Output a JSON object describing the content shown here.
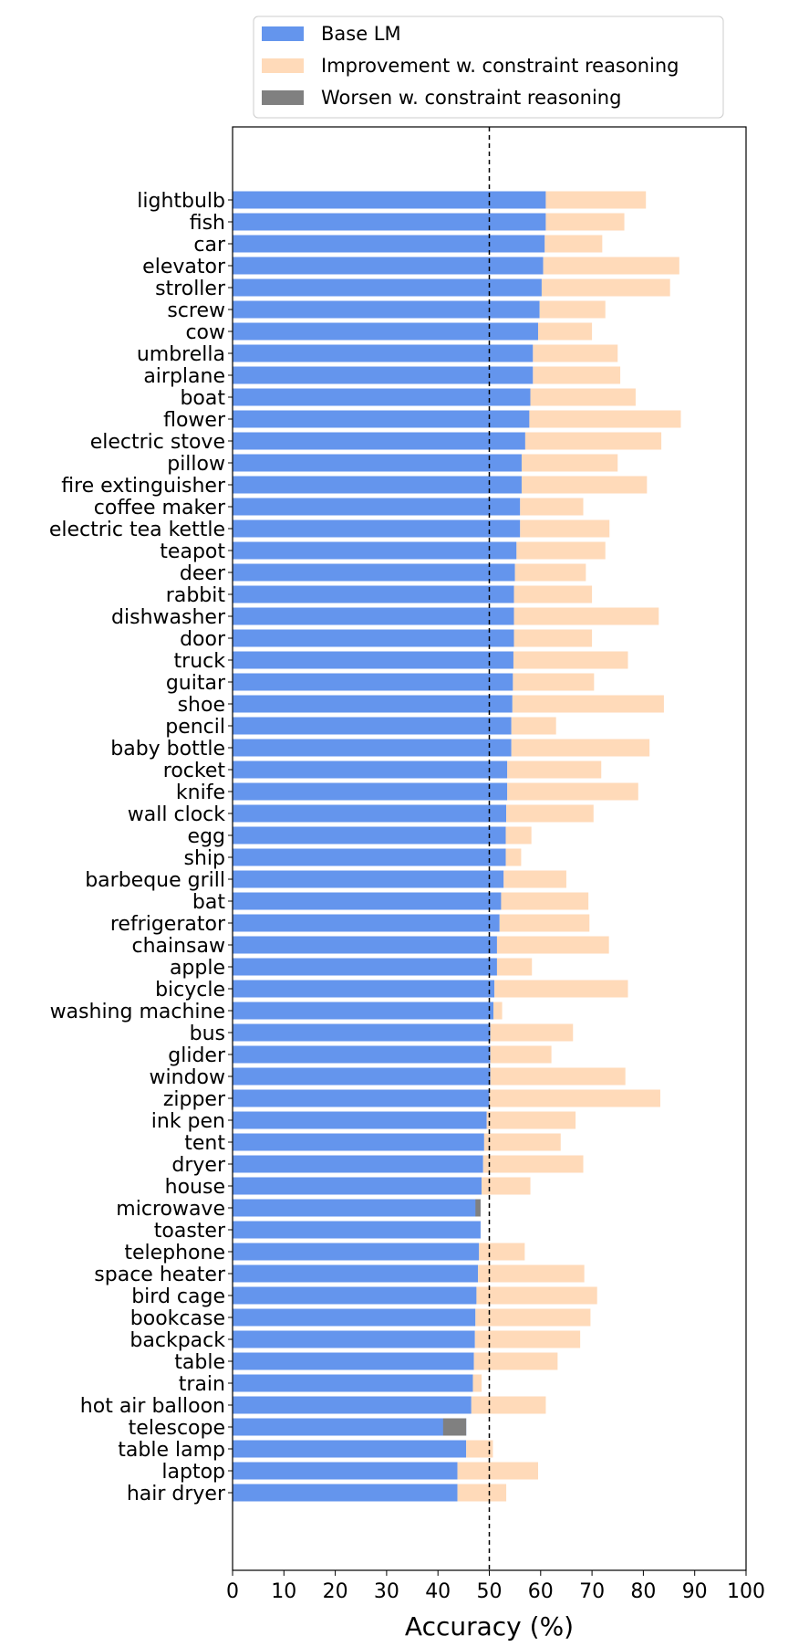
{
  "chart_data": {
    "type": "bar",
    "orientation": "horizontal",
    "stacked": true,
    "xlabel": "Accuracy (%)",
    "ylabel": "",
    "xlim": [
      0,
      100
    ],
    "xticks": [
      0,
      10,
      20,
      30,
      40,
      50,
      60,
      70,
      80,
      90,
      100
    ],
    "reference_line": {
      "x": 50,
      "style": "dashed"
    },
    "legend_position": "top-center",
    "colors": {
      "base": "#6495ED",
      "improvement": "#FFDAB9",
      "worsen": "#808080"
    },
    "legend": [
      {
        "key": "base",
        "label": "Base LM"
      },
      {
        "key": "improvement",
        "label": "Improvement w. constraint reasoning"
      },
      {
        "key": "worsen",
        "label": "Worsen w. constraint reasoning"
      }
    ],
    "categories": [
      "lightbulb",
      "fish",
      "car",
      "elevator",
      "stroller",
      "screw",
      "cow",
      "umbrella",
      "airplane",
      "boat",
      "flower",
      "electric stove",
      "pillow",
      "fire extinguisher",
      "coffee maker",
      "electric tea kettle",
      "teapot",
      "deer",
      "rabbit",
      "dishwasher",
      "door",
      "truck",
      "guitar",
      "shoe",
      "pencil",
      "baby bottle",
      "rocket",
      "knife",
      "wall clock",
      "egg",
      "ship",
      "barbeque grill",
      "bat",
      "refrigerator",
      "chainsaw",
      "apple",
      "bicycle",
      "washing machine",
      "bus",
      "glider",
      "window",
      "zipper",
      "ink pen",
      "tent",
      "dryer",
      "house",
      "microwave",
      "toaster",
      "telephone",
      "space heater",
      "bird cage",
      "bookcase",
      "backpack",
      "table",
      "train",
      "hot air balloon",
      "telescope",
      "table lamp",
      "laptop",
      "hair dryer"
    ],
    "series": [
      {
        "name": "Base LM",
        "key": "base",
        "values": [
          61,
          61,
          60.8,
          60.5,
          60.2,
          59.8,
          59.5,
          58.5,
          58.5,
          58,
          57.8,
          57,
          56.3,
          56.3,
          56,
          56,
          55.3,
          55,
          54.8,
          54.8,
          54.8,
          54.7,
          54.6,
          54.5,
          54.3,
          54.3,
          53.5,
          53.5,
          53.3,
          53.2,
          53.2,
          52.8,
          52.3,
          52,
          51.5,
          51.5,
          51,
          50.8,
          50.2,
          50.2,
          50.2,
          50,
          49.5,
          49,
          48.8,
          48.5,
          48.3,
          48.3,
          48,
          47.8,
          47.5,
          47.3,
          47.2,
          47,
          46.8,
          46.5,
          45.5,
          45.5,
          43.8,
          43.8
        ]
      },
      {
        "name": "Improvement w. constraint reasoning",
        "key": "improvement",
        "values": [
          19.5,
          15.3,
          11.2,
          26.5,
          25,
          12.8,
          10.5,
          16.5,
          17,
          20.5,
          29.5,
          26.5,
          18.7,
          24.4,
          12.3,
          17.4,
          17.3,
          13.8,
          15.2,
          28.2,
          15.2,
          22.3,
          15.8,
          29.5,
          8.7,
          26.9,
          18.3,
          25.5,
          17,
          5,
          3,
          12.2,
          17,
          17.5,
          21.8,
          6.8,
          26,
          1.7,
          16.1,
          11.9,
          26.3,
          33.3,
          17.3,
          14.9,
          19.5,
          9.5,
          0,
          0,
          8.9,
          20.7,
          23.5,
          22.4,
          20.5,
          16.3,
          1.7,
          14.5,
          0,
          5.2,
          15.7,
          9.5
        ]
      },
      {
        "name": "Worsen w. constraint reasoning",
        "key": "worsen",
        "values": [
          0,
          0,
          0,
          0,
          0,
          0,
          0,
          0,
          0,
          0,
          0,
          0,
          0,
          0,
          0,
          0,
          0,
          0,
          0,
          0,
          0,
          0,
          0,
          0,
          0,
          0,
          0,
          0,
          0,
          0,
          0,
          0,
          0,
          0,
          0,
          0,
          0,
          0,
          0,
          0,
          0,
          0,
          0,
          0,
          0,
          0,
          1,
          0,
          0,
          0,
          0,
          0,
          0,
          0,
          0,
          0,
          4.5,
          0,
          0,
          0
        ]
      }
    ]
  }
}
